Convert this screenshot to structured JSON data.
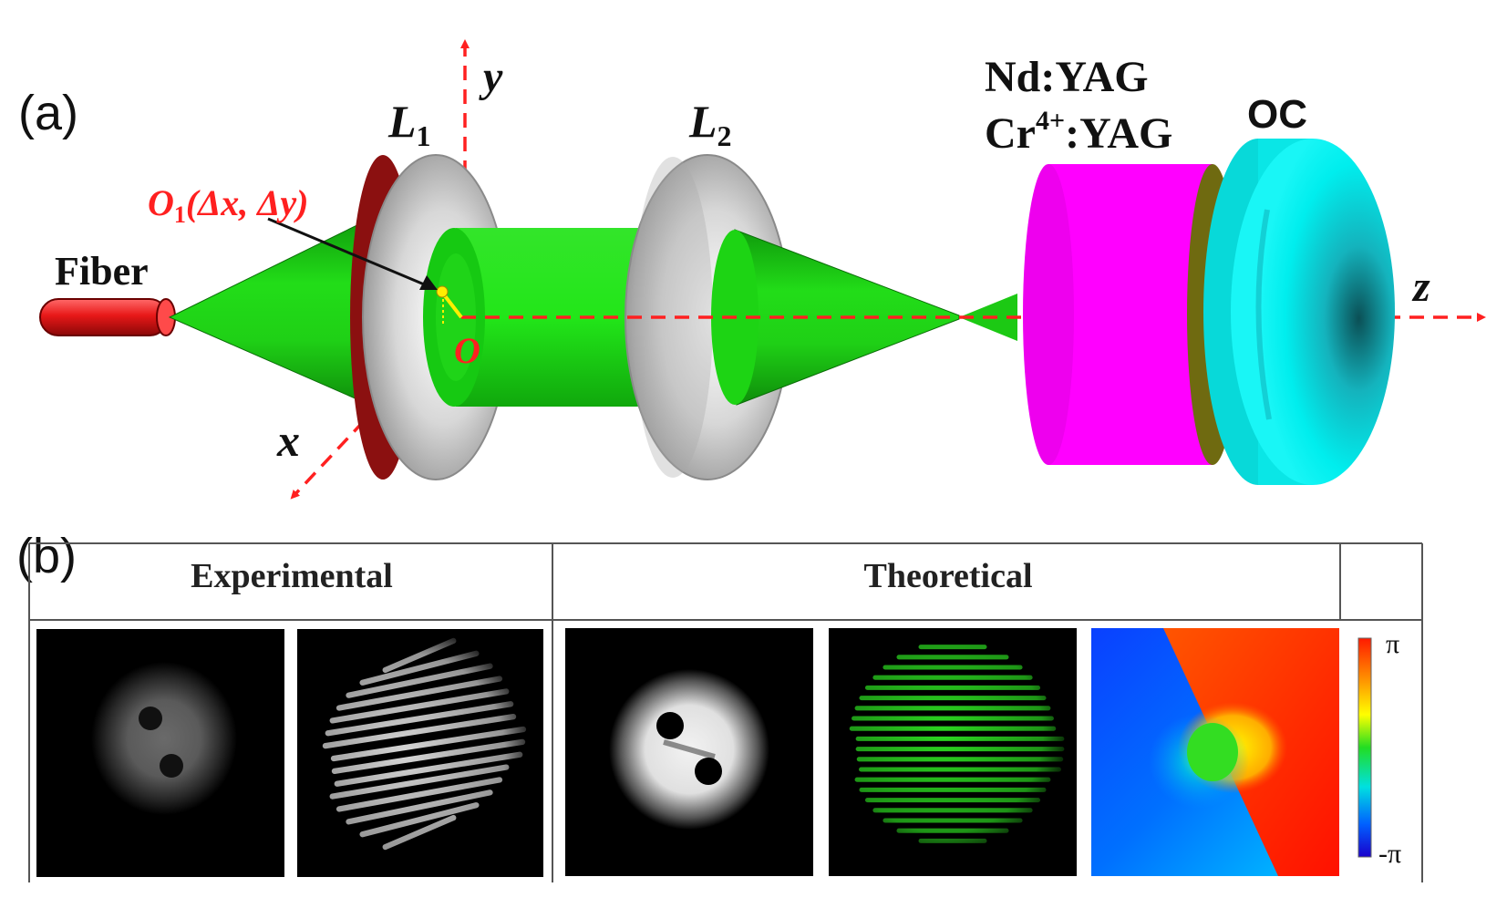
{
  "panel_a": {
    "panel_label": "(a)",
    "labels": {
      "fiber": "Fiber",
      "l1": "L",
      "l1_sub": "1",
      "l2": "L",
      "l2_sub": "2",
      "offset_o": "O",
      "offset_sub": "1",
      "offset_coords": "(Δx, Δy)",
      "origin": "O",
      "axis_x": "x",
      "axis_y": "y",
      "axis_z": "z",
      "crystal_1": "Nd:YAG",
      "crystal_2_a": "Cr",
      "crystal_2_sup": "4+",
      "crystal_2_b": ":YAG",
      "oc": "OC"
    },
    "colors": {
      "beam": "#18cc10",
      "lens": "#b9b9b9",
      "lens_rim": "#8b1010",
      "crystal": "#ff00ff",
      "crystal_face": "#6f6a10",
      "output_coupler": "#00f2f2",
      "fiber": "#e01515",
      "axis": "#ff2020"
    }
  },
  "panel_b": {
    "panel_label": "(b)",
    "headers": {
      "experimental": "Experimental",
      "theoretical": "Theoretical",
      "extra": ""
    },
    "colorbar": {
      "max_label": "π",
      "min_label": "-π"
    }
  }
}
